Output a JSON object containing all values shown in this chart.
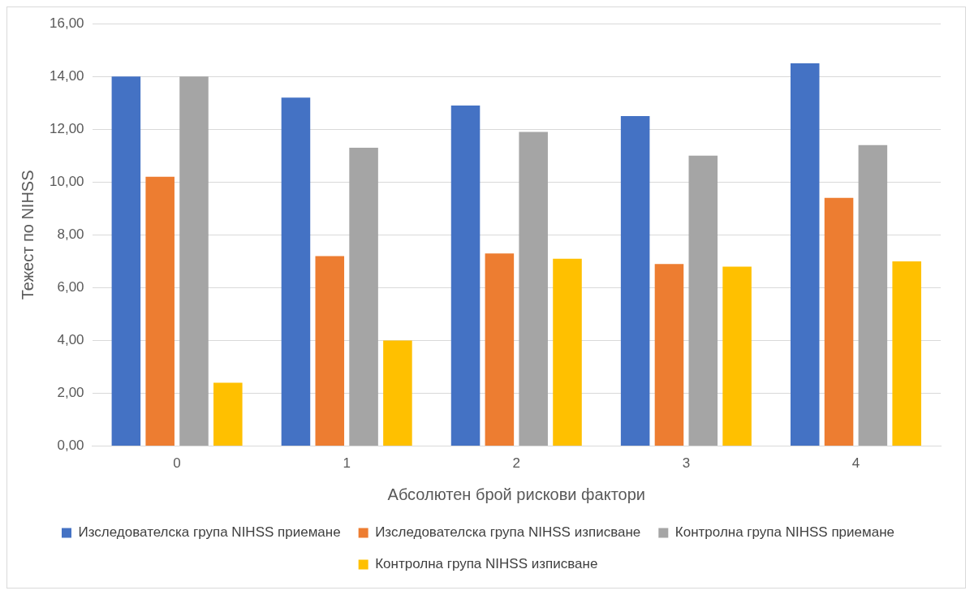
{
  "chart_data": {
    "type": "bar",
    "xlabel": "Абсолютен брой рискови фактори",
    "ylabel": "Тежест по NIHSS",
    "categories": [
      "0",
      "1",
      "2",
      "3",
      "4"
    ],
    "series": [
      {
        "name": "Изследователска група NIHSS приемане",
        "color": "#4472c4",
        "values": [
          14.0,
          13.2,
          12.9,
          12.5,
          14.5
        ]
      },
      {
        "name": "Изследователска група NIHSS изписване",
        "color": "#ed7d31",
        "values": [
          10.2,
          7.2,
          7.3,
          6.9,
          9.4
        ]
      },
      {
        "name": "Контролна група NIHSS приемане",
        "color": "#a5a5a5",
        "values": [
          14.0,
          11.3,
          11.9,
          11.0,
          11.4
        ]
      },
      {
        "name": "Контролна група NIHSS изписване",
        "color": "#ffc000",
        "values": [
          2.4,
          4.0,
          7.1,
          6.8,
          7.0
        ]
      }
    ],
    "ylim": [
      0,
      16
    ],
    "yticks": [
      {
        "value": 0,
        "label": "0,00"
      },
      {
        "value": 2,
        "label": "2,00"
      },
      {
        "value": 4,
        "label": "4,00"
      },
      {
        "value": 6,
        "label": "6,00"
      },
      {
        "value": 8,
        "label": "8,00"
      },
      {
        "value": 10,
        "label": "10,00"
      },
      {
        "value": 12,
        "label": "12,00"
      },
      {
        "value": 14,
        "label": "14,00"
      },
      {
        "value": 16,
        "label": "16,00"
      }
    ],
    "grid": "y",
    "legend": "bottom"
  }
}
